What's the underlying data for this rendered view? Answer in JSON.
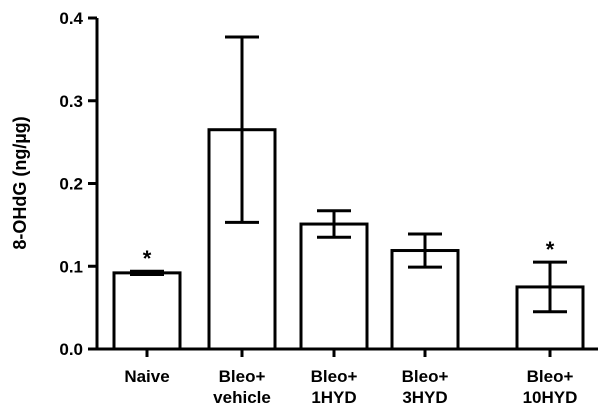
{
  "chart_data": {
    "type": "bar",
    "title": "",
    "ylabel": "8-OHdG (ng/µg)",
    "xlabel": "",
    "ylim": [
      0,
      0.4
    ],
    "yticks": [
      "0.0",
      "0.1",
      "0.2",
      "0.3",
      "0.4"
    ],
    "ytick_values": [
      0,
      0.1,
      0.2,
      0.3,
      0.4
    ],
    "categories": [
      [
        "Naive"
      ],
      [
        "Bleo+",
        "vehicle"
      ],
      [
        "Bleo+",
        "1HYD"
      ],
      [
        "Bleo+",
        "3HYD"
      ],
      [
        "Bleo+",
        "10HYD"
      ]
    ],
    "values": [
      0.092,
      0.265,
      0.151,
      0.119,
      0.075
    ],
    "errors": [
      0.002,
      0.112,
      0.016,
      0.02,
      0.03
    ],
    "annotations": [
      "*",
      "",
      "",
      "",
      "*"
    ],
    "bar_color": "#ffffff",
    "edge_color": "#000000",
    "grid": false
  }
}
